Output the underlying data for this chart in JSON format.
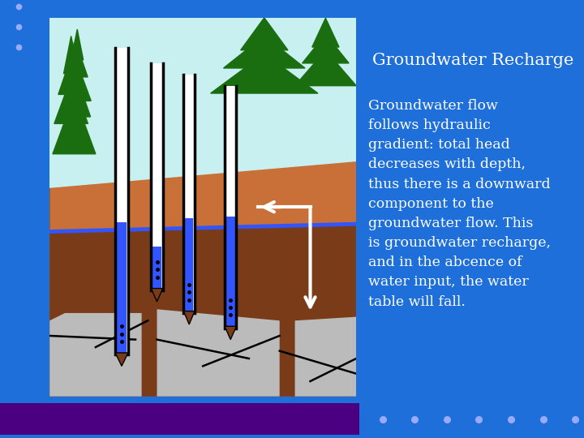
{
  "bg_color": "#1E6FD9",
  "title_box_color": "#4B0082",
  "title_text": "Groundwater Recharge",
  "title_text_color": "#FFFFFF",
  "body_text_color": "#FFFFFF",
  "body_text": "Groundwater flow\nfollows hydraulic\ngradient: total head\ndecreases with depth,\nthus there is a downward\ncomponent to the\ngroundwater flow. This\nis groundwater recharge,\nand in the abcence of\nwater input, the water\ntable will fall.",
  "diagram_bg": "#FFFFFF",
  "sky_color": "#C8F0F0",
  "soil_upper_color": "#C87038",
  "soil_lower_color": "#7A3C18",
  "water_table_color": "#3355FF",
  "tree_color": "#1A6E10",
  "aquifer_color": "#BBBBBB",
  "well_water_color": "#3355FF",
  "bottom_bar_color": "#4B0082",
  "dot_color": "#99AAFF"
}
